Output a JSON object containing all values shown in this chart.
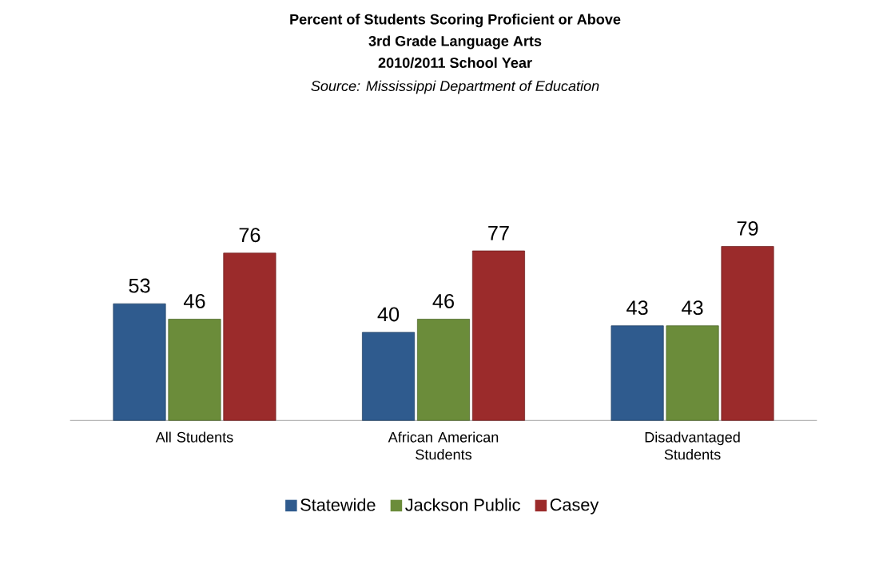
{
  "chart_data": {
    "type": "bar",
    "title": "Percent of Students Scoring Proficient or Above",
    "subtitle": "3rd Grade Language Arts",
    "annotations": [
      "2010/2011 School Year",
      "Source: Mississippi Department of Education"
    ],
    "categories": [
      "All Students",
      "African American Students",
      "Disadvantaged Students"
    ],
    "series": [
      {
        "name": "Statewide",
        "color": "#2f5b8e",
        "values": [
          53,
          40,
          43
        ]
      },
      {
        "name": "Jackson Public",
        "color": "#6b8c3a",
        "values": [
          46,
          46,
          43
        ]
      },
      {
        "name": "Casey",
        "color": "#9b2b2b",
        "values": [
          76,
          77,
          79
        ]
      }
    ],
    "data_labels": true,
    "legend": "bottom",
    "grid": false
  }
}
